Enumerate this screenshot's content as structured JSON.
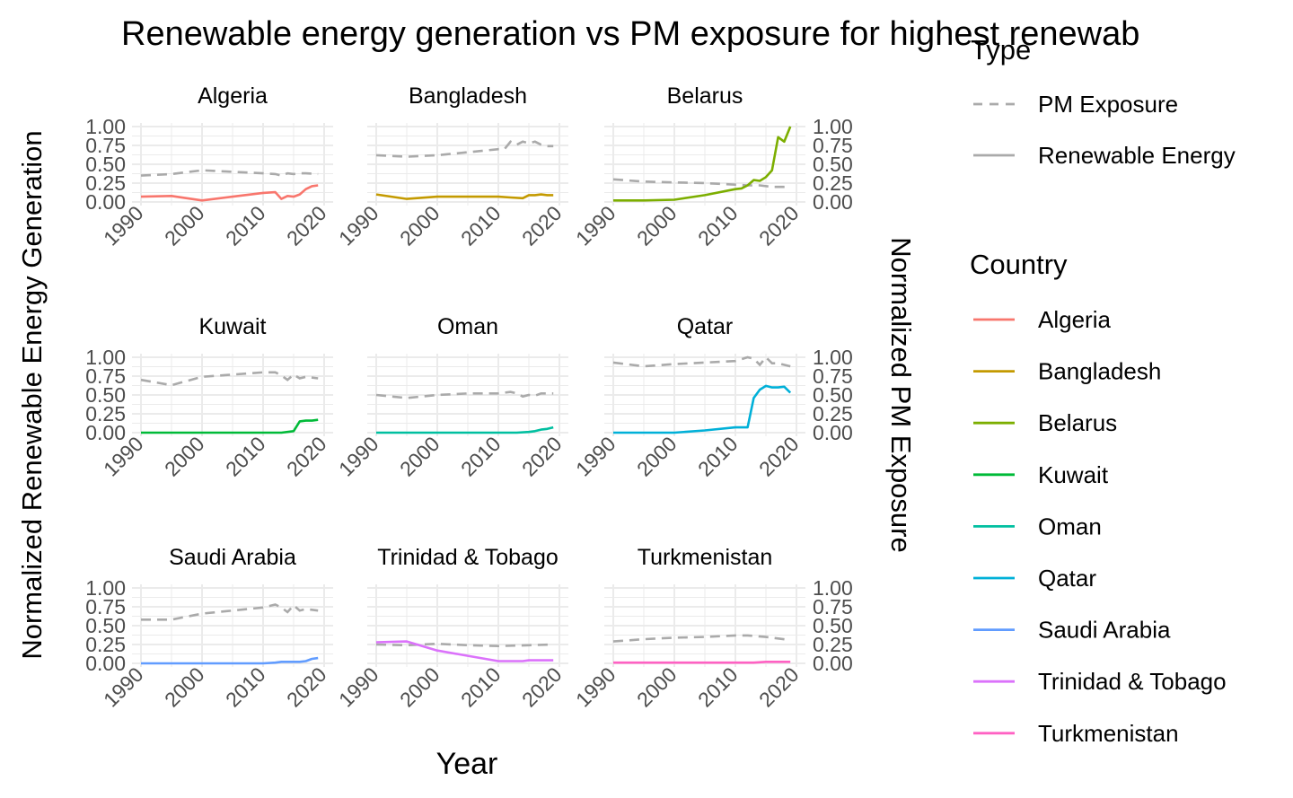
{
  "chart_data": {
    "type": "line",
    "title": "Renewable energy generation vs PM exposure for highest renewab",
    "xlabel": "Year",
    "ylabel": "Normalized Renewable Energy Generation",
    "ylabel_right": "Normalized PM Exposure",
    "xlim": [
      1990,
      2020
    ],
    "ylim": [
      0,
      1
    ],
    "x_ticks": [
      "1990",
      "2000",
      "2010",
      "2020"
    ],
    "y_ticks": [
      "0.00",
      "0.25",
      "0.50",
      "0.75",
      "1.00"
    ],
    "grid": true,
    "legend_type": {
      "title": "Type",
      "entries": [
        "PM Exposure",
        "Renewable Energy"
      ]
    },
    "legend_country": {
      "title": "Country",
      "entries": [
        {
          "name": "Algeria",
          "color": "#F8766D"
        },
        {
          "name": "Bangladesh",
          "color": "#C49A00"
        },
        {
          "name": "Belarus",
          "color": "#7CAE00"
        },
        {
          "name": "Kuwait",
          "color": "#00BA38"
        },
        {
          "name": "Oman",
          "color": "#00BFA0"
        },
        {
          "name": "Qatar",
          "color": "#00B0D8"
        },
        {
          "name": "Saudi Arabia",
          "color": "#619CFF"
        },
        {
          "name": "Trinidad & Tobago",
          "color": "#DB72FB"
        },
        {
          "name": "Turkmenistan",
          "color": "#FF61C3"
        }
      ]
    },
    "pm_color": "#AAAAAA",
    "panels": [
      {
        "name": "Algeria",
        "color": "#F8766D",
        "renewable": [
          [
            1990,
            0.07
          ],
          [
            1995,
            0.08
          ],
          [
            2000,
            0.02
          ],
          [
            2005,
            0.07
          ],
          [
            2010,
            0.12
          ],
          [
            2012,
            0.13
          ],
          [
            2013,
            0.04
          ],
          [
            2014,
            0.08
          ],
          [
            2015,
            0.07
          ],
          [
            2016,
            0.1
          ],
          [
            2017,
            0.17
          ],
          [
            2018,
            0.21
          ],
          [
            2019,
            0.22
          ]
        ],
        "pm": [
          [
            1990,
            0.35
          ],
          [
            1995,
            0.37
          ],
          [
            2000,
            0.42
          ],
          [
            2005,
            0.4
          ],
          [
            2010,
            0.38
          ],
          [
            2012,
            0.37
          ],
          [
            2013,
            0.35
          ],
          [
            2014,
            0.38
          ],
          [
            2015,
            0.37
          ],
          [
            2016,
            0.38
          ],
          [
            2017,
            0.38
          ],
          [
            2019,
            0.37
          ]
        ]
      },
      {
        "name": "Bangladesh",
        "color": "#C49A00",
        "renewable": [
          [
            1990,
            0.1
          ],
          [
            1995,
            0.04
          ],
          [
            2000,
            0.07
          ],
          [
            2005,
            0.07
          ],
          [
            2010,
            0.07
          ],
          [
            2012,
            0.06
          ],
          [
            2014,
            0.05
          ],
          [
            2015,
            0.09
          ],
          [
            2016,
            0.09
          ],
          [
            2017,
            0.1
          ],
          [
            2018,
            0.09
          ],
          [
            2019,
            0.09
          ]
        ],
        "pm": [
          [
            1990,
            0.62
          ],
          [
            1995,
            0.6
          ],
          [
            2000,
            0.62
          ],
          [
            2005,
            0.66
          ],
          [
            2010,
            0.7
          ],
          [
            2011,
            0.7
          ],
          [
            2012,
            0.8
          ],
          [
            2013,
            0.76
          ],
          [
            2014,
            0.8
          ],
          [
            2015,
            0.78
          ],
          [
            2016,
            0.8
          ],
          [
            2017,
            0.76
          ],
          [
            2018,
            0.74
          ],
          [
            2019,
            0.74
          ]
        ]
      },
      {
        "name": "Belarus",
        "color": "#7CAE00",
        "renewable": [
          [
            1990,
            0.02
          ],
          [
            1995,
            0.02
          ],
          [
            2000,
            0.03
          ],
          [
            2005,
            0.09
          ],
          [
            2010,
            0.17
          ],
          [
            2011,
            0.18
          ],
          [
            2012,
            0.22
          ],
          [
            2013,
            0.29
          ],
          [
            2014,
            0.28
          ],
          [
            2015,
            0.33
          ],
          [
            2016,
            0.42
          ],
          [
            2017,
            0.86
          ],
          [
            2018,
            0.8
          ],
          [
            2019,
            1.0
          ]
        ],
        "pm": [
          [
            1990,
            0.3
          ],
          [
            1995,
            0.27
          ],
          [
            2000,
            0.26
          ],
          [
            2005,
            0.25
          ],
          [
            2010,
            0.23
          ],
          [
            2012,
            0.22
          ],
          [
            2014,
            0.22
          ],
          [
            2016,
            0.2
          ],
          [
            2019,
            0.2
          ]
        ]
      },
      {
        "name": "Kuwait",
        "color": "#00BA38",
        "renewable": [
          [
            1990,
            0.0
          ],
          [
            1995,
            0.0
          ],
          [
            2000,
            0.0
          ],
          [
            2005,
            0.0
          ],
          [
            2010,
            0.0
          ],
          [
            2013,
            0.0
          ],
          [
            2015,
            0.02
          ],
          [
            2016,
            0.15
          ],
          [
            2017,
            0.16
          ],
          [
            2018,
            0.16
          ],
          [
            2019,
            0.17
          ]
        ],
        "pm": [
          [
            1990,
            0.7
          ],
          [
            1995,
            0.63
          ],
          [
            2000,
            0.74
          ],
          [
            2005,
            0.77
          ],
          [
            2010,
            0.8
          ],
          [
            2012,
            0.8
          ],
          [
            2013,
            0.76
          ],
          [
            2014,
            0.7
          ],
          [
            2015,
            0.77
          ],
          [
            2016,
            0.72
          ],
          [
            2017,
            0.74
          ],
          [
            2019,
            0.72
          ]
        ]
      },
      {
        "name": "Oman",
        "color": "#00BFA0",
        "renewable": [
          [
            1990,
            0.0
          ],
          [
            1995,
            0.0
          ],
          [
            2000,
            0.0
          ],
          [
            2005,
            0.0
          ],
          [
            2010,
            0.0
          ],
          [
            2013,
            0.0
          ],
          [
            2015,
            0.01
          ],
          [
            2016,
            0.02
          ],
          [
            2017,
            0.04
          ],
          [
            2018,
            0.05
          ],
          [
            2019,
            0.07
          ]
        ],
        "pm": [
          [
            1990,
            0.5
          ],
          [
            1995,
            0.46
          ],
          [
            2000,
            0.5
          ],
          [
            2005,
            0.52
          ],
          [
            2010,
            0.52
          ],
          [
            2012,
            0.54
          ],
          [
            2013,
            0.52
          ],
          [
            2014,
            0.48
          ],
          [
            2015,
            0.5
          ],
          [
            2016,
            0.49
          ],
          [
            2017,
            0.52
          ],
          [
            2019,
            0.52
          ]
        ]
      },
      {
        "name": "Qatar",
        "color": "#00B0D8",
        "renewable": [
          [
            1990,
            0.0
          ],
          [
            1995,
            0.0
          ],
          [
            2000,
            0.0
          ],
          [
            2005,
            0.03
          ],
          [
            2010,
            0.07
          ],
          [
            2012,
            0.07
          ],
          [
            2013,
            0.46
          ],
          [
            2014,
            0.57
          ],
          [
            2015,
            0.62
          ],
          [
            2016,
            0.6
          ],
          [
            2017,
            0.6
          ],
          [
            2018,
            0.61
          ],
          [
            2019,
            0.53
          ]
        ],
        "pm": [
          [
            1990,
            0.93
          ],
          [
            1995,
            0.88
          ],
          [
            2000,
            0.91
          ],
          [
            2005,
            0.93
          ],
          [
            2010,
            0.95
          ],
          [
            2012,
            1.0
          ],
          [
            2013,
            0.98
          ],
          [
            2014,
            0.9
          ],
          [
            2015,
            1.0
          ],
          [
            2016,
            0.92
          ],
          [
            2017,
            0.92
          ],
          [
            2019,
            0.88
          ]
        ]
      },
      {
        "name": "Saudi Arabia",
        "color": "#619CFF",
        "renewable": [
          [
            1990,
            0.0
          ],
          [
            1995,
            0.0
          ],
          [
            2000,
            0.0
          ],
          [
            2005,
            0.0
          ],
          [
            2010,
            0.0
          ],
          [
            2012,
            0.01
          ],
          [
            2013,
            0.02
          ],
          [
            2015,
            0.02
          ],
          [
            2016,
            0.02
          ],
          [
            2017,
            0.03
          ],
          [
            2018,
            0.06
          ],
          [
            2019,
            0.07
          ]
        ],
        "pm": [
          [
            1990,
            0.58
          ],
          [
            1995,
            0.58
          ],
          [
            2000,
            0.66
          ],
          [
            2005,
            0.7
          ],
          [
            2010,
            0.74
          ],
          [
            2012,
            0.78
          ],
          [
            2013,
            0.74
          ],
          [
            2014,
            0.68
          ],
          [
            2015,
            0.77
          ],
          [
            2016,
            0.7
          ],
          [
            2017,
            0.72
          ],
          [
            2019,
            0.7
          ]
        ]
      },
      {
        "name": "Trinidad & Tobago",
        "color": "#DB72FB",
        "renewable": [
          [
            1990,
            0.28
          ],
          [
            1995,
            0.29
          ],
          [
            2000,
            0.17
          ],
          [
            2005,
            0.1
          ],
          [
            2010,
            0.03
          ],
          [
            2012,
            0.03
          ],
          [
            2014,
            0.03
          ],
          [
            2015,
            0.04
          ],
          [
            2017,
            0.04
          ],
          [
            2019,
            0.04
          ]
        ],
        "pm": [
          [
            1990,
            0.25
          ],
          [
            1995,
            0.24
          ],
          [
            2000,
            0.26
          ],
          [
            2005,
            0.24
          ],
          [
            2010,
            0.23
          ],
          [
            2015,
            0.24
          ],
          [
            2019,
            0.25
          ]
        ]
      },
      {
        "name": "Turkmenistan",
        "color": "#FF61C3",
        "renewable": [
          [
            1990,
            0.01
          ],
          [
            1995,
            0.01
          ],
          [
            2000,
            0.01
          ],
          [
            2005,
            0.01
          ],
          [
            2010,
            0.01
          ],
          [
            2013,
            0.01
          ],
          [
            2015,
            0.02
          ],
          [
            2016,
            0.02
          ],
          [
            2019,
            0.02
          ]
        ],
        "pm": [
          [
            1990,
            0.29
          ],
          [
            1995,
            0.32
          ],
          [
            2000,
            0.34
          ],
          [
            2005,
            0.35
          ],
          [
            2010,
            0.37
          ],
          [
            2012,
            0.37
          ],
          [
            2015,
            0.35
          ],
          [
            2019,
            0.31
          ]
        ]
      }
    ]
  }
}
